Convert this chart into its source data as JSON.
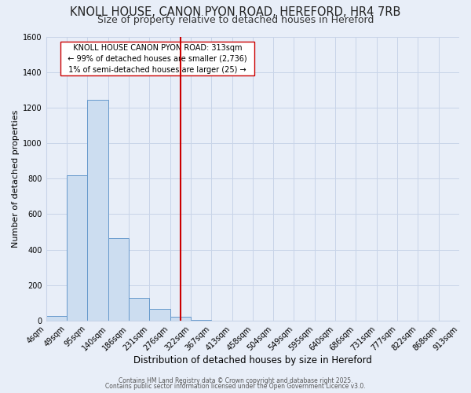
{
  "title1": "KNOLL HOUSE, CANON PYON ROAD, HEREFORD, HR4 7RB",
  "title2": "Size of property relative to detached houses in Hereford",
  "xlabel": "Distribution of detached houses by size in Hereford",
  "ylabel": "Number of detached properties",
  "footer1": "Contains HM Land Registry data © Crown copyright and database right 2025.",
  "footer2": "Contains public sector information licensed under the Open Government Licence v3.0.",
  "bin_labels": [
    "4sqm",
    "49sqm",
    "95sqm",
    "140sqm",
    "186sqm",
    "231sqm",
    "276sqm",
    "322sqm",
    "367sqm",
    "413sqm",
    "458sqm",
    "504sqm",
    "549sqm",
    "595sqm",
    "640sqm",
    "686sqm",
    "731sqm",
    "777sqm",
    "822sqm",
    "868sqm",
    "913sqm"
  ],
  "bar_heights": [
    25,
    820,
    1245,
    465,
    130,
    65,
    20,
    5,
    0,
    0,
    0,
    0,
    0,
    0,
    0,
    0,
    0,
    0,
    0,
    0
  ],
  "bar_color": "#ccddf0",
  "bar_edge_color": "#6699cc",
  "background_color": "#e8eef8",
  "grid_color": "#c8d4e8",
  "vline_x": 6.5,
  "vline_color": "#cc0000",
  "annotation_text": "  KNOLL HOUSE CANON PYON ROAD: 313sqm  \n  ← 99% of detached houses are smaller (2,736)  \n  1% of semi-detached houses are larger (25) →  ",
  "annotation_box_color": "#ffffff",
  "annotation_border_color": "#cc0000",
  "ylim": [
    0,
    1600
  ],
  "yticks": [
    0,
    200,
    400,
    600,
    800,
    1000,
    1200,
    1400,
    1600
  ],
  "title1_fontsize": 10.5,
  "title2_fontsize": 9,
  "xlabel_fontsize": 8.5,
  "ylabel_fontsize": 8,
  "annotation_fontsize": 7,
  "tick_fontsize": 7
}
